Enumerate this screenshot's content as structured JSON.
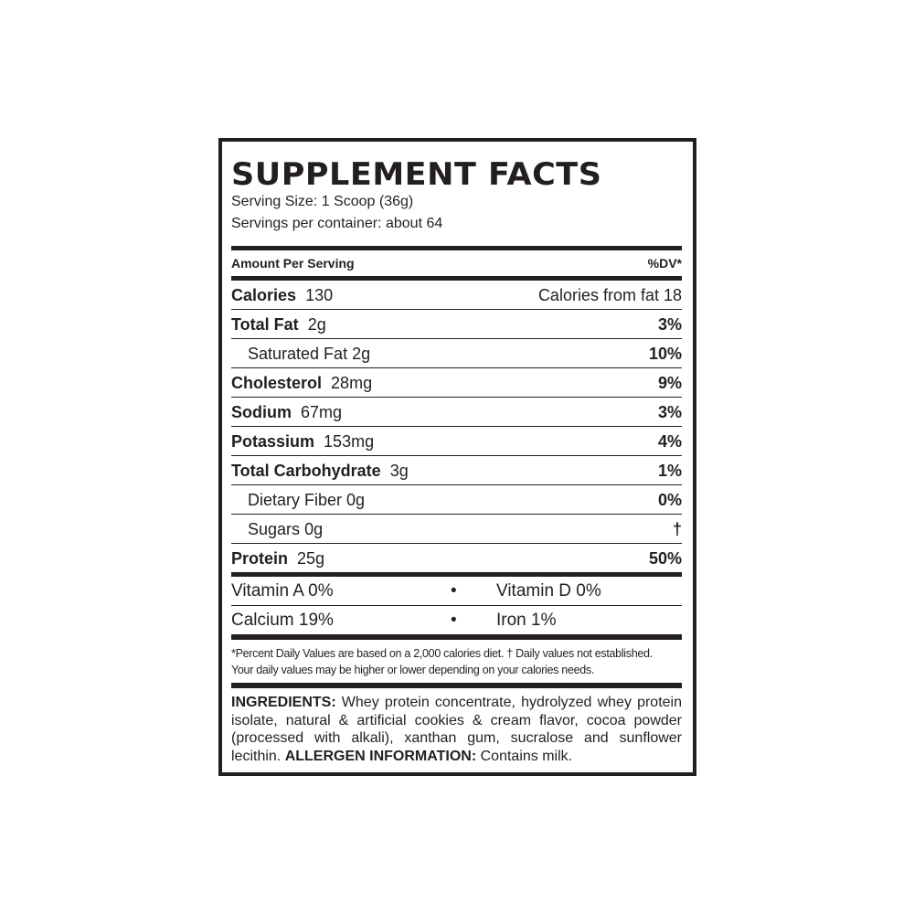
{
  "title": "SUPPLEMENT FACTS",
  "serving_size": "Serving Size: 1 Scoop (36g)",
  "servings_per_container": "Servings per container: about 64",
  "header": {
    "amount": "Amount Per Serving",
    "dv": "%DV*"
  },
  "calories": {
    "label": "Calories",
    "value": "130",
    "from_fat": "Calories from fat 18"
  },
  "nutrients": [
    {
      "name": "Total Fat",
      "amount": "2g",
      "dv": "3%",
      "indent": false
    },
    {
      "name": "Saturated Fat",
      "amount": "2g",
      "dv": "10%",
      "indent": true
    },
    {
      "name": "Cholesterol",
      "amount": "28mg",
      "dv": "9%",
      "indent": false
    },
    {
      "name": "Sodium",
      "amount": "67mg",
      "dv": "3%",
      "indent": false
    },
    {
      "name": "Potassium",
      "amount": "153mg",
      "dv": "4%",
      "indent": false
    },
    {
      "name": "Total Carbohydrate",
      "amount": "3g",
      "dv": "1%",
      "indent": false
    },
    {
      "name": "Dietary Fiber",
      "amount": "0g",
      "dv": "0%",
      "indent": true
    },
    {
      "name": "Sugars",
      "amount": "0g",
      "dv": "†",
      "indent": true
    },
    {
      "name": "Protein",
      "amount": "25g",
      "dv": "50%",
      "indent": false
    }
  ],
  "vitamins": [
    {
      "left": "Vitamin A 0%",
      "sep": "•",
      "right": "Vitamin D 0%"
    },
    {
      "left": "Calcium 19%",
      "sep": "•",
      "right": "Iron 1%"
    }
  ],
  "footnote": {
    "line1": "*Percent Daily Values are based on a 2,000 calories diet. † Daily values not established.",
    "line2": "Your daily values may be higher or lower depending on your calories needs."
  },
  "ingredients": {
    "label": "INGREDIENTS:",
    "text": " Whey protein concentrate, hydrolyzed whey protein isolate, natural & artificial cookies & cream flavor, cocoa powder (processed with alkali), xanthan gum, sucralose and sunflower lecithin. ",
    "allergen_label": "ALLERGEN INFORMATION:",
    "allergen_text": " Contains milk."
  }
}
